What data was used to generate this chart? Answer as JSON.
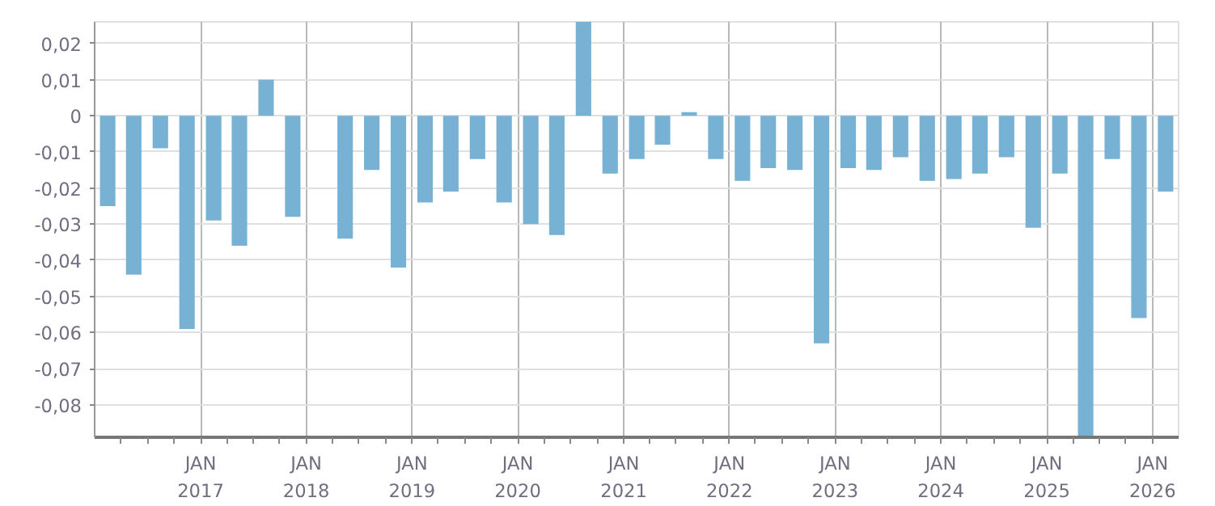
{
  "chart_data": {
    "type": "bar",
    "color": "#77b1d3",
    "x": [
      "2016-02-15",
      "2016-05-15",
      "2016-08-15",
      "2016-11-15",
      "2017-02-15",
      "2017-05-15",
      "2017-08-15",
      "2017-11-15",
      "2018-02-15",
      "2018-05-15",
      "2018-08-15",
      "2018-11-15",
      "2019-02-15",
      "2019-05-15",
      "2019-08-15",
      "2019-11-15",
      "2020-02-15",
      "2020-05-15",
      "2020-08-15",
      "2020-11-15",
      "2021-02-15",
      "2021-05-15",
      "2021-08-15",
      "2021-11-15",
      "2022-02-15",
      "2022-05-15",
      "2022-08-15",
      "2022-11-15",
      "2023-02-15",
      "2023-05-15",
      "2023-08-15",
      "2023-11-15",
      "2024-02-15",
      "2024-05-15",
      "2024-08-15",
      "2024-11-15",
      "2025-02-15",
      "2025-05-15",
      "2025-08-15",
      "2025-11-15",
      "2026-02-15"
    ],
    "values": [
      -0.025,
      -0.044,
      -0.009,
      -0.059,
      -0.029,
      -0.036,
      0.01,
      -0.028,
      null,
      -0.034,
      -0.015,
      -0.042,
      -0.024,
      -0.021,
      -0.012,
      -0.024,
      -0.03,
      -0.033,
      0.026,
      -0.016,
      -0.012,
      -0.008,
      0.001,
      -0.012,
      -0.018,
      -0.0145,
      -0.015,
      -0.063,
      -0.0145,
      -0.015,
      -0.0115,
      -0.018,
      -0.0175,
      -0.016,
      -0.0115,
      -0.031,
      -0.016,
      -0.089,
      -0.012,
      -0.056,
      -0.021
    ],
    "xlim": [
      "2016-01-01",
      "2026-04-01"
    ],
    "xticks": [
      {
        "value": "2016-04-01",
        "label": null
      },
      {
        "value": "2016-07-01",
        "label": null
      },
      {
        "value": "2016-10-01",
        "label": null
      },
      {
        "value": "2017-01-01",
        "label": "JAN\n2017"
      },
      {
        "value": "2017-04-01",
        "label": null
      },
      {
        "value": "2017-07-01",
        "label": null
      },
      {
        "value": "2017-10-01",
        "label": null
      },
      {
        "value": "2018-01-01",
        "label": "JAN\n2018"
      },
      {
        "value": "2018-04-01",
        "label": null
      },
      {
        "value": "2018-07-01",
        "label": null
      },
      {
        "value": "2018-10-01",
        "label": null
      },
      {
        "value": "2019-01-01",
        "label": "JAN\n2019"
      },
      {
        "value": "2019-04-01",
        "label": null
      },
      {
        "value": "2019-07-01",
        "label": null
      },
      {
        "value": "2019-10-01",
        "label": null
      },
      {
        "value": "2020-01-01",
        "label": "JAN\n2020"
      },
      {
        "value": "2020-04-01",
        "label": null
      },
      {
        "value": "2020-07-01",
        "label": null
      },
      {
        "value": "2020-10-01",
        "label": null
      },
      {
        "value": "2021-01-01",
        "label": "JAN\n2021"
      },
      {
        "value": "2021-04-01",
        "label": null
      },
      {
        "value": "2021-07-01",
        "label": null
      },
      {
        "value": "2021-10-01",
        "label": null
      },
      {
        "value": "2022-01-01",
        "label": "JAN\n2022"
      },
      {
        "value": "2022-04-01",
        "label": null
      },
      {
        "value": "2022-07-01",
        "label": null
      },
      {
        "value": "2022-10-01",
        "label": null
      },
      {
        "value": "2023-01-01",
        "label": "JAN\n2023"
      },
      {
        "value": "2023-04-01",
        "label": null
      },
      {
        "value": "2023-07-01",
        "label": null
      },
      {
        "value": "2023-10-01",
        "label": null
      },
      {
        "value": "2024-01-01",
        "label": "JAN\n2024"
      },
      {
        "value": "2024-04-01",
        "label": null
      },
      {
        "value": "2024-07-01",
        "label": null
      },
      {
        "value": "2024-10-01",
        "label": null
      },
      {
        "value": "2025-01-01",
        "label": "JAN\n2025"
      },
      {
        "value": "2025-04-01",
        "label": null
      },
      {
        "value": "2025-07-01",
        "label": null
      },
      {
        "value": "2025-10-01",
        "label": null
      },
      {
        "value": "2026-01-01",
        "label": "JAN\n2026"
      }
    ],
    "ylim": [
      -0.089,
      0.026
    ],
    "yticks": [
      {
        "value": -0.08,
        "label": "-0,08"
      },
      {
        "value": -0.07,
        "label": "-0,07"
      },
      {
        "value": -0.06,
        "label": "-0,06"
      },
      {
        "value": -0.05,
        "label": "-0,05"
      },
      {
        "value": -0.04,
        "label": "-0,04"
      },
      {
        "value": -0.03,
        "label": "-0,03"
      },
      {
        "value": -0.02,
        "label": "-0,02"
      },
      {
        "value": -0.01,
        "label": "-0,01"
      },
      0,
      {
        "value": 0.01,
        "label": "0,01"
      },
      {
        "value": 0.02,
        "label": "0,02"
      }
    ],
    "grid": true
  }
}
